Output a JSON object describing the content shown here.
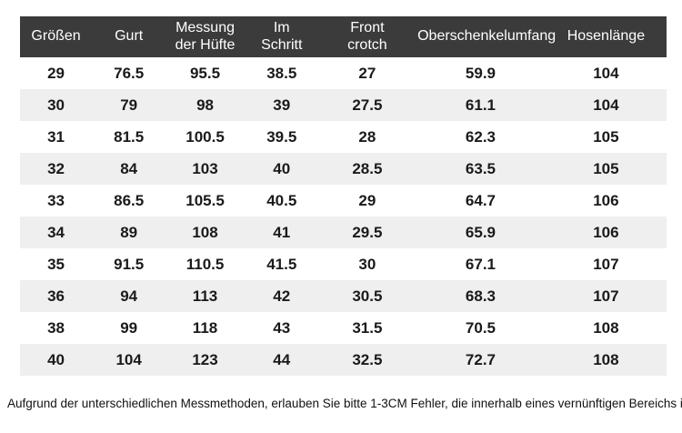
{
  "table": {
    "columns": [
      "Größen",
      "Gurt",
      "Messung\nder Hüfte",
      "Im\nSchritt",
      "Front\ncrotch",
      "Oberschenkelumfang",
      "Hosenlänge"
    ],
    "rows": [
      [
        "29",
        "76.5",
        "95.5",
        "38.5",
        "27",
        "59.9",
        "104"
      ],
      [
        "30",
        "79",
        "98",
        "39",
        "27.5",
        "61.1",
        "104"
      ],
      [
        "31",
        "81.5",
        "100.5",
        "39.5",
        "28",
        "62.3",
        "105"
      ],
      [
        "32",
        "84",
        "103",
        "40",
        "28.5",
        "63.5",
        "105"
      ],
      [
        "33",
        "86.5",
        "105.5",
        "40.5",
        "29",
        "64.7",
        "106"
      ],
      [
        "34",
        "89",
        "108",
        "41",
        "29.5",
        "65.9",
        "106"
      ],
      [
        "35",
        "91.5",
        "110.5",
        "41.5",
        "30",
        "67.1",
        "107"
      ],
      [
        "36",
        "94",
        "113",
        "42",
        "30.5",
        "68.3",
        "107"
      ],
      [
        "38",
        "99",
        "118",
        "43",
        "31.5",
        "70.5",
        "108"
      ],
      [
        "40",
        "104",
        "123",
        "44",
        "32.5",
        "72.7",
        "108"
      ]
    ],
    "colors": {
      "header_bg": "#3b3b3b",
      "header_text": "#ffffff",
      "row_stripe": "#efefef",
      "cell_text": "#1a1a1a"
    }
  },
  "footnote": "Aufgrund der unterschiedlichen Messmethoden, erlauben Sie bitte 1-3CM Fehler, die innerhalb eines vernünftigen Bereichs ist.",
  "chart_data": {
    "type": "table",
    "columns": [
      "Größen",
      "Gurt",
      "Messung der Hüfte",
      "Im Schritt",
      "Front crotch",
      "Oberschenkelumfang",
      "Hosenlänge"
    ],
    "rows": [
      [
        29,
        76.5,
        95.5,
        38.5,
        27,
        59.9,
        104
      ],
      [
        30,
        79,
        98,
        39,
        27.5,
        61.1,
        104
      ],
      [
        31,
        81.5,
        100.5,
        39.5,
        28,
        62.3,
        105
      ],
      [
        32,
        84,
        103,
        40,
        28.5,
        63.5,
        105
      ],
      [
        33,
        86.5,
        105.5,
        40.5,
        29,
        64.7,
        106
      ],
      [
        34,
        89,
        108,
        41,
        29.5,
        65.9,
        106
      ],
      [
        35,
        91.5,
        110.5,
        41.5,
        30,
        67.1,
        107
      ],
      [
        36,
        94,
        113,
        42,
        30.5,
        68.3,
        107
      ],
      [
        38,
        99,
        118,
        43,
        31.5,
        70.5,
        108
      ],
      [
        40,
        104,
        123,
        44,
        32.5,
        72.7,
        108
      ]
    ],
    "footnote": "Aufgrund der unterschiedlichen Messmethoden, erlauben Sie bitte 1-3CM Fehler, die innerhalb eines vernünftigen Bereichs ist."
  }
}
